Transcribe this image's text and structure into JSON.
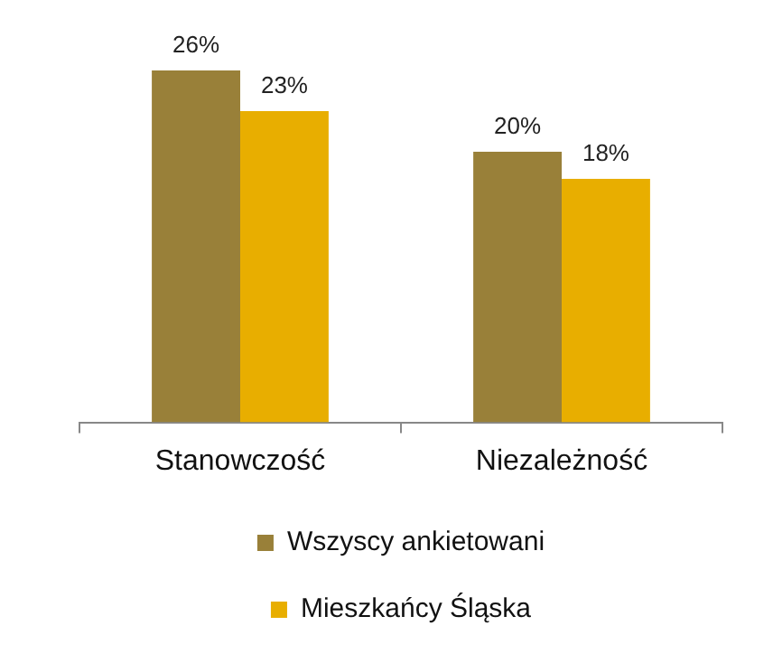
{
  "chart_data": {
    "type": "bar",
    "categories": [
      "Stanowczość",
      "Niezależność"
    ],
    "series": [
      {
        "name": "Wszyscy ankietowani",
        "color": "#998039",
        "values": [
          26,
          20
        ],
        "value_labels": [
          "26%",
          "20%"
        ]
      },
      {
        "name": "Mieszkańcy Śląska",
        "color": "#e8ae00",
        "values": [
          23,
          18
        ],
        "value_labels": [
          "23%",
          "18%"
        ]
      }
    ],
    "tick_labels": "x",
    "legend": "bottom",
    "grid": false
  }
}
